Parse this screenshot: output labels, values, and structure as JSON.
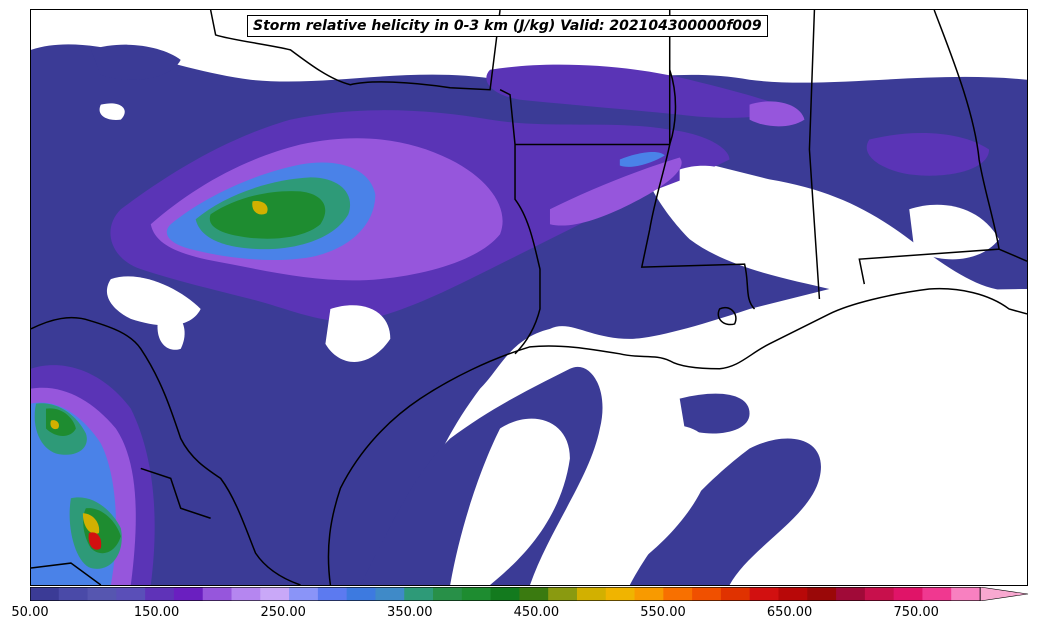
{
  "title": "Storm relative helicity in 0-3 km (J/kg) Valid: 202104300000f009",
  "colorbar": {
    "colors": [
      "#3b3b96",
      "#4a4aa8",
      "#5656b0",
      "#5a4fb8",
      "#5f33b8",
      "#6a1fc0",
      "#9656dc",
      "#b586f0",
      "#c9a8f8",
      "#8a94f8",
      "#5c7af0",
      "#3d7ae0",
      "#3f8ac8",
      "#2e9a78",
      "#289048",
      "#1e8c30",
      "#137a1e",
      "#3a7a10",
      "#8a9a10",
      "#d2b000",
      "#f0b400",
      "#f89a00",
      "#f87000",
      "#f05000",
      "#e03200",
      "#d21010",
      "#b80808",
      "#9a0808",
      "#a00a38",
      "#c8104c",
      "#e01468",
      "#f03890",
      "#f880c0"
    ],
    "extend_color": "#f8a8d0",
    "ticks": [
      "50.00",
      "150.00",
      "250.00",
      "350.00",
      "450.00",
      "550.00",
      "650.00",
      "750.00"
    ]
  },
  "layers": {
    "fill_colors": [
      "#3b3b96",
      "#5a34b6",
      "#9656dc",
      "#4a82e8",
      "#2e9a78",
      "#1e8c30",
      "#d2b000",
      "#d21010"
    ],
    "outline_color": "#000000"
  }
}
